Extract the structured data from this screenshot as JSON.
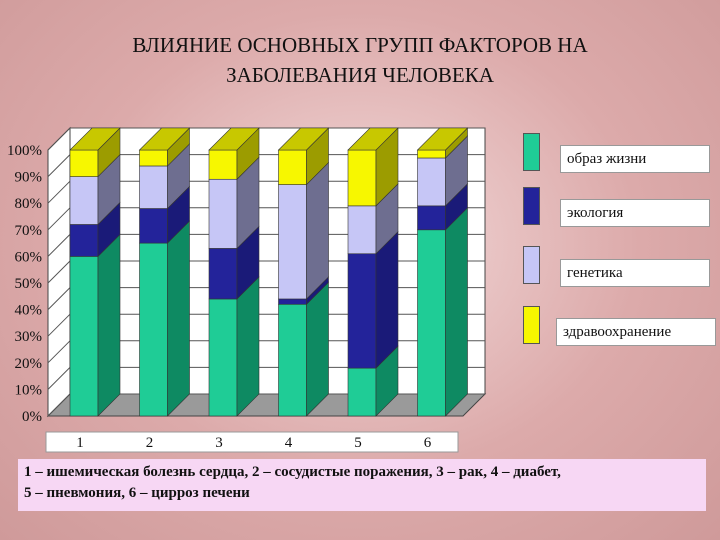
{
  "title": "ВЛИЯНИЕ ОСНОВНЫХ ГРУПП ФАКТОРОВ НА\nЗАБОЛЕВАНИЯ ЧЕЛОВЕКА",
  "colors": {
    "lifestyle": "#1fcc96",
    "ecology": "#23239a",
    "genetics": "#c6c6f6",
    "healthcare": "#f7f700",
    "lifestyle_side": "#0e8a62",
    "ecology_side": "#1a1a78",
    "genetics_side": "#6e6e90",
    "healthcare_side": "#9c9c00",
    "wall": "#ffffff",
    "footnote_bg": "#f7d7f4"
  },
  "footnote": {
    "line1": "1 – ишемическая болезнь сердца, 2 – сосудистые поражения, 3 – рак, 4 – диабет,",
    "line2": "5 – пневмония, 6 – цирроз печени"
  },
  "chart_data": {
    "type": "bar",
    "stacked": true,
    "three_d": true,
    "categories": [
      "1",
      "2",
      "3",
      "4",
      "5",
      "6"
    ],
    "y_ticks": [
      "0%",
      "10%",
      "20%",
      "30%",
      "40%",
      "50%",
      "60%",
      "70%",
      "80%",
      "90%",
      "100%"
    ],
    "ylim": [
      0,
      100
    ],
    "grid": true,
    "legend_position": "right",
    "series": [
      {
        "name": "образ жизни",
        "values": [
          60,
          65,
          44,
          42,
          18,
          70
        ]
      },
      {
        "name": "экология",
        "values": [
          12,
          13,
          19,
          2,
          43,
          9
        ]
      },
      {
        "name": "генетика",
        "values": [
          18,
          16,
          26,
          43,
          18,
          18
        ]
      },
      {
        "name": "здравоохранение",
        "values": [
          10,
          6,
          11,
          13,
          21,
          3
        ]
      }
    ]
  }
}
